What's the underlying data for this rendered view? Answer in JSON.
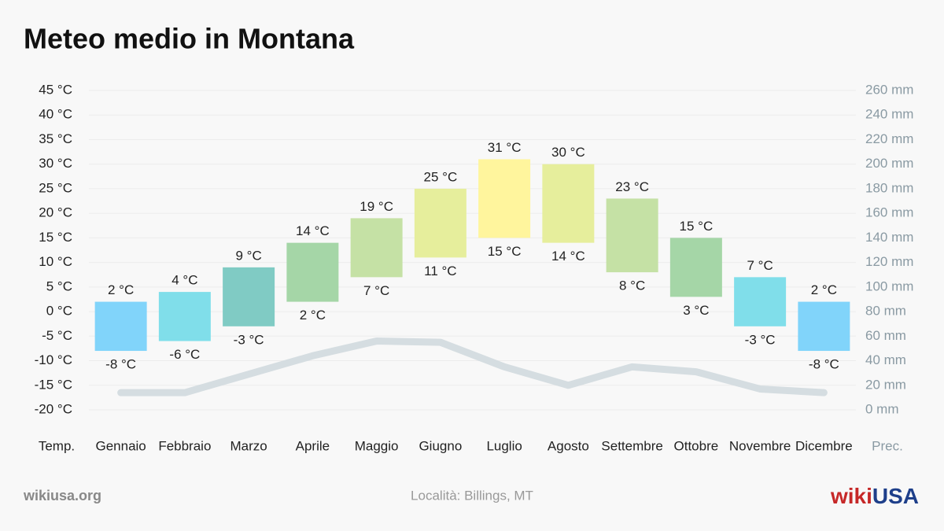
{
  "chart_data": {
    "type": "range",
    "title": "Meteo medio in Montana",
    "y_label": "Temp.",
    "y2_label": "Prec.",
    "categories": [
      "Gennaio",
      "Febbraio",
      "Marzo",
      "Aprile",
      "Maggio",
      "Giugno",
      "Luglio",
      "Agosto",
      "Settembre",
      "Ottobre",
      "Novembre",
      "Dicembre"
    ],
    "max_values": [
      2,
      4,
      9,
      14,
      19,
      25,
      31,
      30,
      23,
      15,
      7,
      2
    ],
    "max_labels": [
      "2 °C",
      "4 °C",
      "9 °C",
      "14 °C",
      "19 °C",
      "25 °C",
      "31 °C",
      "30 °C",
      "23 °C",
      "15 °C",
      "7 °C",
      "2 °C"
    ],
    "min_values": [
      -8,
      -6,
      -3,
      2,
      7,
      11,
      15,
      14,
      8,
      3,
      -3,
      -8
    ],
    "min_labels": [
      "-8 °C",
      "-6 °C",
      "-3 °C",
      "2 °C",
      "7 °C",
      "11 °C",
      "15 °C",
      "14 °C",
      "8 °C",
      "3 °C",
      "-3 °C",
      "-8 °C"
    ],
    "colors": [
      "#81d4fa",
      "#80deea",
      "#80cbc4",
      "#a5d6a7",
      "#c5e1a5",
      "#e6ee9c",
      "#fff59d",
      "#e6ee9c",
      "#c5e1a5",
      "#a5d6a7",
      "#80deea",
      "#81d4fa"
    ],
    "precipitation": {
      "axis": "y2",
      "color": "#d5dde1",
      "values": [
        14,
        14,
        29,
        44,
        56,
        55,
        35,
        20,
        35,
        31,
        17,
        14
      ]
    },
    "ylim": [
      -20,
      45
    ],
    "yticks": [
      {
        "value": 45,
        "label": "45 °C"
      },
      {
        "value": 40,
        "label": "40 °C"
      },
      {
        "value": 35,
        "label": "35 °C"
      },
      {
        "value": 30,
        "label": "30 °C"
      },
      {
        "value": 25,
        "label": "25 °C"
      },
      {
        "value": 20,
        "label": "20 °C"
      },
      {
        "value": 15,
        "label": "15 °C"
      },
      {
        "value": 10,
        "label": "10 °C"
      },
      {
        "value": 5,
        "label": "5 °C"
      },
      {
        "value": 0,
        "label": "0 °C"
      },
      {
        "value": -5,
        "label": "-5 °C"
      },
      {
        "value": -10,
        "label": "-10 °C"
      },
      {
        "value": -15,
        "label": "-15 °C"
      },
      {
        "value": -20,
        "label": "-20 °C"
      }
    ],
    "y2lim": [
      0,
      260
    ],
    "y2ticks": [
      {
        "value": 260,
        "label": "260 mm"
      },
      {
        "value": 240,
        "label": "240 mm"
      },
      {
        "value": 220,
        "label": "220 mm"
      },
      {
        "value": 200,
        "label": "200 mm"
      },
      {
        "value": 180,
        "label": "180 mm"
      },
      {
        "value": 160,
        "label": "160 mm"
      },
      {
        "value": 140,
        "label": "140 mm"
      },
      {
        "value": 120,
        "label": "120 mm"
      },
      {
        "value": 100,
        "label": "100 mm"
      },
      {
        "value": 80,
        "label": "80 mm"
      },
      {
        "value": 60,
        "label": "60 mm"
      },
      {
        "value": 40,
        "label": "40 mm"
      },
      {
        "value": 20,
        "label": "20 mm"
      },
      {
        "value": 0,
        "label": "0 mm"
      }
    ],
    "grid": true
  },
  "footer": {
    "source": "wikiusa.org",
    "location": "Località: Billings, MT",
    "logo_wiki": "wiki",
    "logo_usa": "USA"
  }
}
